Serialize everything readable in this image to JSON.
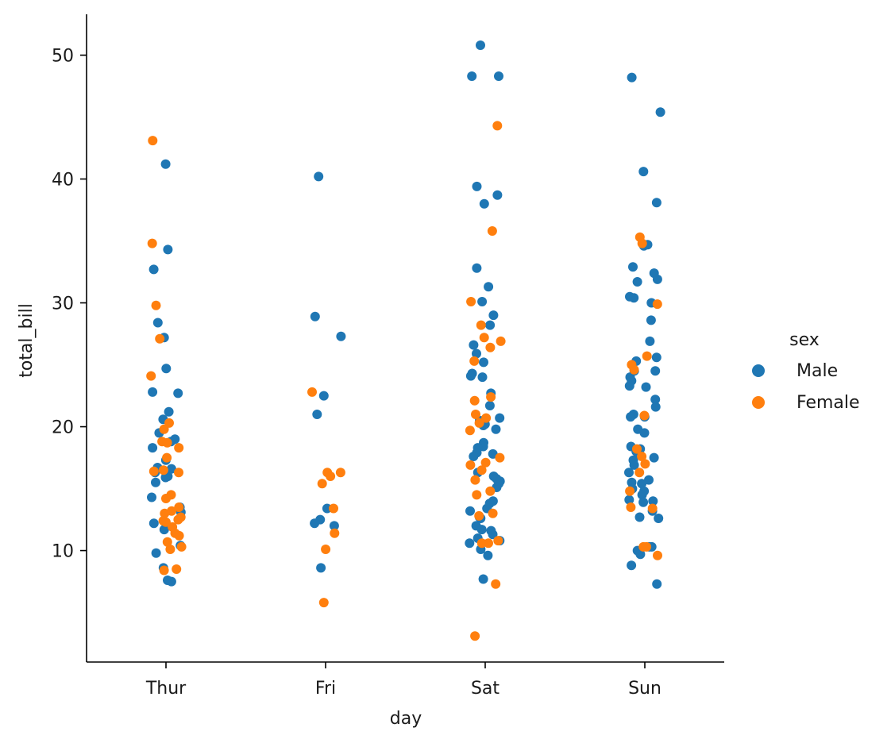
{
  "chart_data": {
    "type": "scatter",
    "kind": "strip",
    "xlabel": "day",
    "ylabel": "total_bill",
    "categories": [
      "Thur",
      "Fri",
      "Sat",
      "Sun"
    ],
    "y_ticks": [
      "10",
      "20",
      "30",
      "40",
      "50"
    ],
    "ylim": [
      1.0,
      53.3
    ],
    "legend": {
      "title": "sex",
      "placement": "right",
      "entries": [
        "Male",
        "Female"
      ]
    },
    "colors": {
      "Male": "#1f77b4",
      "Female": "#ff7f0e"
    },
    "series": [
      {
        "name": "Male",
        "points": [
          {
            "day": "Thur",
            "y": 41.2
          },
          {
            "day": "Thur",
            "y": 34.3
          },
          {
            "day": "Thur",
            "y": 32.7
          },
          {
            "day": "Thur",
            "y": 28.4
          },
          {
            "day": "Thur",
            "y": 27.2
          },
          {
            "day": "Thur",
            "y": 24.7
          },
          {
            "day": "Thur",
            "y": 22.8
          },
          {
            "day": "Thur",
            "y": 22.7
          },
          {
            "day": "Thur",
            "y": 21.2
          },
          {
            "day": "Thur",
            "y": 20.6
          },
          {
            "day": "Thur",
            "y": 19.5
          },
          {
            "day": "Thur",
            "y": 19.0
          },
          {
            "day": "Thur",
            "y": 18.8
          },
          {
            "day": "Thur",
            "y": 18.3
          },
          {
            "day": "Thur",
            "y": 17.3
          },
          {
            "day": "Thur",
            "y": 16.7
          },
          {
            "day": "Thur",
            "y": 16.6
          },
          {
            "day": "Thur",
            "y": 16.3
          },
          {
            "day": "Thur",
            "y": 16.0
          },
          {
            "day": "Thur",
            "y": 15.9
          },
          {
            "day": "Thur",
            "y": 15.5
          },
          {
            "day": "Thur",
            "y": 14.3
          },
          {
            "day": "Thur",
            "y": 13.5
          },
          {
            "day": "Thur",
            "y": 13.1
          },
          {
            "day": "Thur",
            "y": 12.2
          },
          {
            "day": "Thur",
            "y": 11.7
          },
          {
            "day": "Thur",
            "y": 10.4
          },
          {
            "day": "Thur",
            "y": 9.8
          },
          {
            "day": "Thur",
            "y": 8.6
          },
          {
            "day": "Thur",
            "y": 7.6
          },
          {
            "day": "Thur",
            "y": 7.5
          },
          {
            "day": "Fri",
            "y": 40.2
          },
          {
            "day": "Fri",
            "y": 28.9
          },
          {
            "day": "Fri",
            "y": 27.3
          },
          {
            "day": "Fri",
            "y": 22.5
          },
          {
            "day": "Fri",
            "y": 21.0
          },
          {
            "day": "Fri",
            "y": 13.4
          },
          {
            "day": "Fri",
            "y": 12.5
          },
          {
            "day": "Fri",
            "y": 12.2
          },
          {
            "day": "Fri",
            "y": 12.0
          },
          {
            "day": "Fri",
            "y": 8.6
          },
          {
            "day": "Sat",
            "y": 50.8
          },
          {
            "day": "Sat",
            "y": 48.3
          },
          {
            "day": "Sat",
            "y": 48.3
          },
          {
            "day": "Sat",
            "y": 39.4
          },
          {
            "day": "Sat",
            "y": 38.7
          },
          {
            "day": "Sat",
            "y": 38.0
          },
          {
            "day": "Sat",
            "y": 32.8
          },
          {
            "day": "Sat",
            "y": 31.3
          },
          {
            "day": "Sat",
            "y": 30.1
          },
          {
            "day": "Sat",
            "y": 29.0
          },
          {
            "day": "Sat",
            "y": 28.2
          },
          {
            "day": "Sat",
            "y": 26.6
          },
          {
            "day": "Sat",
            "y": 25.9
          },
          {
            "day": "Sat",
            "y": 25.2
          },
          {
            "day": "Sat",
            "y": 24.3
          },
          {
            "day": "Sat",
            "y": 24.1
          },
          {
            "day": "Sat",
            "y": 24.0
          },
          {
            "day": "Sat",
            "y": 22.7
          },
          {
            "day": "Sat",
            "y": 21.7
          },
          {
            "day": "Sat",
            "y": 20.7
          },
          {
            "day": "Sat",
            "y": 20.5
          },
          {
            "day": "Sat",
            "y": 20.4
          },
          {
            "day": "Sat",
            "y": 20.2
          },
          {
            "day": "Sat",
            "y": 20.1
          },
          {
            "day": "Sat",
            "y": 19.8
          },
          {
            "day": "Sat",
            "y": 18.7
          },
          {
            "day": "Sat",
            "y": 18.4
          },
          {
            "day": "Sat",
            "y": 18.3
          },
          {
            "day": "Sat",
            "y": 17.9
          },
          {
            "day": "Sat",
            "y": 17.8
          },
          {
            "day": "Sat",
            "y": 17.6
          },
          {
            "day": "Sat",
            "y": 16.3
          },
          {
            "day": "Sat",
            "y": 16.0
          },
          {
            "day": "Sat",
            "y": 15.8
          },
          {
            "day": "Sat",
            "y": 15.6
          },
          {
            "day": "Sat",
            "y": 15.4
          },
          {
            "day": "Sat",
            "y": 15.1
          },
          {
            "day": "Sat",
            "y": 14.0
          },
          {
            "day": "Sat",
            "y": 13.8
          },
          {
            "day": "Sat",
            "y": 13.4
          },
          {
            "day": "Sat",
            "y": 13.2
          },
          {
            "day": "Sat",
            "y": 12.7
          },
          {
            "day": "Sat",
            "y": 12.6
          },
          {
            "day": "Sat",
            "y": 12.0
          },
          {
            "day": "Sat",
            "y": 11.7
          },
          {
            "day": "Sat",
            "y": 11.6
          },
          {
            "day": "Sat",
            "y": 11.3
          },
          {
            "day": "Sat",
            "y": 11.0
          },
          {
            "day": "Sat",
            "y": 10.8
          },
          {
            "day": "Sat",
            "y": 10.6
          },
          {
            "day": "Sat",
            "y": 10.1
          },
          {
            "day": "Sat",
            "y": 9.6
          },
          {
            "day": "Sat",
            "y": 7.7
          },
          {
            "day": "Sun",
            "y": 48.2
          },
          {
            "day": "Sun",
            "y": 45.4
          },
          {
            "day": "Sun",
            "y": 40.6
          },
          {
            "day": "Sun",
            "y": 38.1
          },
          {
            "day": "Sun",
            "y": 34.7
          },
          {
            "day": "Sun",
            "y": 34.6
          },
          {
            "day": "Sun",
            "y": 32.9
          },
          {
            "day": "Sun",
            "y": 32.4
          },
          {
            "day": "Sun",
            "y": 31.9
          },
          {
            "day": "Sun",
            "y": 31.7
          },
          {
            "day": "Sun",
            "y": 30.5
          },
          {
            "day": "Sun",
            "y": 30.4
          },
          {
            "day": "Sun",
            "y": 30.0
          },
          {
            "day": "Sun",
            "y": 28.6
          },
          {
            "day": "Sun",
            "y": 26.9
          },
          {
            "day": "Sun",
            "y": 25.6
          },
          {
            "day": "Sun",
            "y": 25.3
          },
          {
            "day": "Sun",
            "y": 24.5
          },
          {
            "day": "Sun",
            "y": 24.5
          },
          {
            "day": "Sun",
            "y": 24.0
          },
          {
            "day": "Sun",
            "y": 23.7
          },
          {
            "day": "Sun",
            "y": 23.3
          },
          {
            "day": "Sun",
            "y": 23.2
          },
          {
            "day": "Sun",
            "y": 22.2
          },
          {
            "day": "Sun",
            "y": 21.6
          },
          {
            "day": "Sun",
            "y": 21.0
          },
          {
            "day": "Sun",
            "y": 20.8
          },
          {
            "day": "Sun",
            "y": 20.8
          },
          {
            "day": "Sun",
            "y": 19.8
          },
          {
            "day": "Sun",
            "y": 19.5
          },
          {
            "day": "Sun",
            "y": 18.4
          },
          {
            "day": "Sun",
            "y": 18.2
          },
          {
            "day": "Sun",
            "y": 18.0
          },
          {
            "day": "Sun",
            "y": 17.8
          },
          {
            "day": "Sun",
            "y": 17.5
          },
          {
            "day": "Sun",
            "y": 17.3
          },
          {
            "day": "Sun",
            "y": 16.9
          },
          {
            "day": "Sun",
            "y": 16.3
          },
          {
            "day": "Sun",
            "y": 15.7
          },
          {
            "day": "Sun",
            "y": 15.5
          },
          {
            "day": "Sun",
            "y": 15.4
          },
          {
            "day": "Sun",
            "y": 15.0
          },
          {
            "day": "Sun",
            "y": 14.8
          },
          {
            "day": "Sun",
            "y": 14.5
          },
          {
            "day": "Sun",
            "y": 14.1
          },
          {
            "day": "Sun",
            "y": 14.0
          },
          {
            "day": "Sun",
            "y": 13.9
          },
          {
            "day": "Sun",
            "y": 13.2
          },
          {
            "day": "Sun",
            "y": 12.7
          },
          {
            "day": "Sun",
            "y": 12.6
          },
          {
            "day": "Sun",
            "y": 10.3
          },
          {
            "day": "Sun",
            "y": 10.3
          },
          {
            "day": "Sun",
            "y": 10.0
          },
          {
            "day": "Sun",
            "y": 9.7
          },
          {
            "day": "Sun",
            "y": 8.8
          },
          {
            "day": "Sun",
            "y": 7.3
          }
        ]
      },
      {
        "name": "Female",
        "points": [
          {
            "day": "Thur",
            "y": 43.1
          },
          {
            "day": "Thur",
            "y": 34.8
          },
          {
            "day": "Thur",
            "y": 29.8
          },
          {
            "day": "Thur",
            "y": 27.1
          },
          {
            "day": "Thur",
            "y": 24.1
          },
          {
            "day": "Thur",
            "y": 20.3
          },
          {
            "day": "Thur",
            "y": 19.8
          },
          {
            "day": "Thur",
            "y": 18.8
          },
          {
            "day": "Thur",
            "y": 18.7
          },
          {
            "day": "Thur",
            "y": 18.3
          },
          {
            "day": "Thur",
            "y": 17.5
          },
          {
            "day": "Thur",
            "y": 16.5
          },
          {
            "day": "Thur",
            "y": 16.4
          },
          {
            "day": "Thur",
            "y": 16.3
          },
          {
            "day": "Thur",
            "y": 14.5
          },
          {
            "day": "Thur",
            "y": 14.2
          },
          {
            "day": "Thur",
            "y": 13.5
          },
          {
            "day": "Thur",
            "y": 13.2
          },
          {
            "day": "Thur",
            "y": 13.0
          },
          {
            "day": "Thur",
            "y": 12.7
          },
          {
            "day": "Thur",
            "y": 12.5
          },
          {
            "day": "Thur",
            "y": 12.4
          },
          {
            "day": "Thur",
            "y": 12.3
          },
          {
            "day": "Thur",
            "y": 11.9
          },
          {
            "day": "Thur",
            "y": 11.4
          },
          {
            "day": "Thur",
            "y": 11.2
          },
          {
            "day": "Thur",
            "y": 10.7
          },
          {
            "day": "Thur",
            "y": 10.3
          },
          {
            "day": "Thur",
            "y": 10.1
          },
          {
            "day": "Thur",
            "y": 8.5
          },
          {
            "day": "Thur",
            "y": 8.4
          },
          {
            "day": "Fri",
            "y": 22.8
          },
          {
            "day": "Fri",
            "y": 16.3
          },
          {
            "day": "Fri",
            "y": 16.3
          },
          {
            "day": "Fri",
            "y": 16.0
          },
          {
            "day": "Fri",
            "y": 15.4
          },
          {
            "day": "Fri",
            "y": 13.4
          },
          {
            "day": "Fri",
            "y": 11.4
          },
          {
            "day": "Fri",
            "y": 10.1
          },
          {
            "day": "Fri",
            "y": 5.8
          },
          {
            "day": "Sat",
            "y": 44.3
          },
          {
            "day": "Sat",
            "y": 35.8
          },
          {
            "day": "Sat",
            "y": 30.1
          },
          {
            "day": "Sat",
            "y": 28.2
          },
          {
            "day": "Sat",
            "y": 27.2
          },
          {
            "day": "Sat",
            "y": 26.9
          },
          {
            "day": "Sat",
            "y": 26.4
          },
          {
            "day": "Sat",
            "y": 25.3
          },
          {
            "day": "Sat",
            "y": 22.4
          },
          {
            "day": "Sat",
            "y": 22.1
          },
          {
            "day": "Sat",
            "y": 21.0
          },
          {
            "day": "Sat",
            "y": 20.7
          },
          {
            "day": "Sat",
            "y": 20.3
          },
          {
            "day": "Sat",
            "y": 19.7
          },
          {
            "day": "Sat",
            "y": 17.5
          },
          {
            "day": "Sat",
            "y": 17.1
          },
          {
            "day": "Sat",
            "y": 16.9
          },
          {
            "day": "Sat",
            "y": 16.5
          },
          {
            "day": "Sat",
            "y": 15.7
          },
          {
            "day": "Sat",
            "y": 14.8
          },
          {
            "day": "Sat",
            "y": 14.5
          },
          {
            "day": "Sat",
            "y": 13.0
          },
          {
            "day": "Sat",
            "y": 12.8
          },
          {
            "day": "Sat",
            "y": 10.8
          },
          {
            "day": "Sat",
            "y": 10.6
          },
          {
            "day": "Sat",
            "y": 10.6
          },
          {
            "day": "Sat",
            "y": 7.3
          },
          {
            "day": "Sat",
            "y": 3.1
          },
          {
            "day": "Sun",
            "y": 35.3
          },
          {
            "day": "Sun",
            "y": 34.8
          },
          {
            "day": "Sun",
            "y": 29.9
          },
          {
            "day": "Sun",
            "y": 25.7
          },
          {
            "day": "Sun",
            "y": 25.0
          },
          {
            "day": "Sun",
            "y": 24.6
          },
          {
            "day": "Sun",
            "y": 20.9
          },
          {
            "day": "Sun",
            "y": 18.2
          },
          {
            "day": "Sun",
            "y": 17.6
          },
          {
            "day": "Sun",
            "y": 17.0
          },
          {
            "day": "Sun",
            "y": 16.3
          },
          {
            "day": "Sun",
            "y": 14.8
          },
          {
            "day": "Sun",
            "y": 13.5
          },
          {
            "day": "Sun",
            "y": 13.4
          },
          {
            "day": "Sun",
            "y": 10.3
          },
          {
            "day": "Sun",
            "y": 10.3
          },
          {
            "day": "Sun",
            "y": 9.6
          }
        ]
      }
    ]
  }
}
